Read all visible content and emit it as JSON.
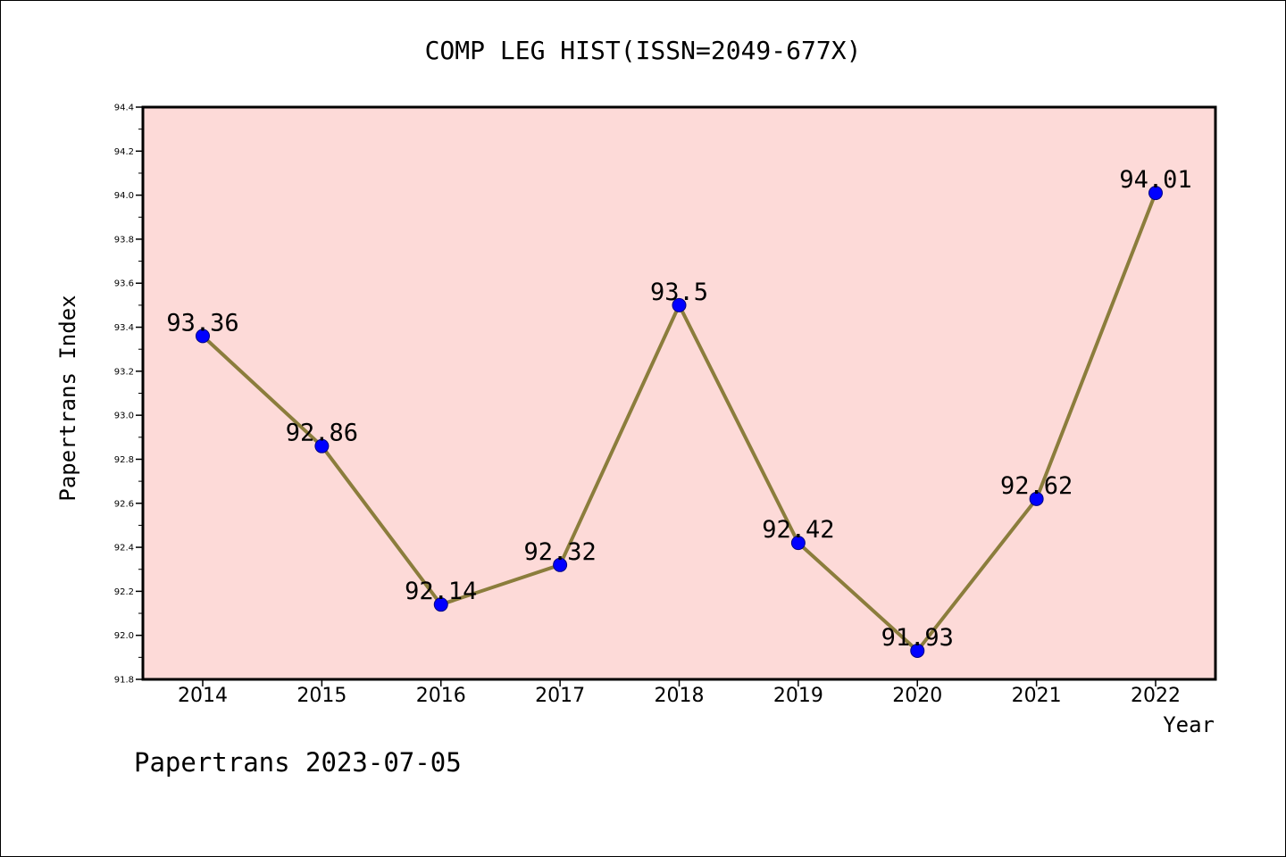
{
  "chart_data": {
    "type": "line",
    "title": "COMP LEG HIST(ISSN=2049-677X)",
    "xlabel": "Year",
    "ylabel": "Papertrans Index",
    "footer": "Papertrans 2023-07-05",
    "categories": [
      "2014",
      "2015",
      "2016",
      "2017",
      "2018",
      "2019",
      "2020",
      "2021",
      "2022"
    ],
    "series": [
      {
        "values": [
          93.36,
          92.86,
          92.14,
          92.32,
          93.5,
          92.42,
          91.93,
          92.62,
          94.01
        ],
        "data_labels": [
          "93.36",
          "92.86",
          "92.14",
          "92.32",
          "93.5",
          "92.42",
          "91.93",
          "92.62",
          "94.01"
        ]
      }
    ],
    "ylim": [
      91.8,
      94.4
    ],
    "yticks": [
      "91.8",
      "92.0",
      "92.2",
      "92.4",
      "92.6",
      "92.8",
      "93.0",
      "93.2",
      "93.4",
      "93.6",
      "93.8",
      "94.0",
      "94.2",
      "94.4"
    ],
    "grid": false,
    "colors": {
      "plot_background": "#fddad8",
      "line": "#8b7d3c",
      "marker": "#0000ff",
      "marker_edge": "#000080"
    }
  }
}
